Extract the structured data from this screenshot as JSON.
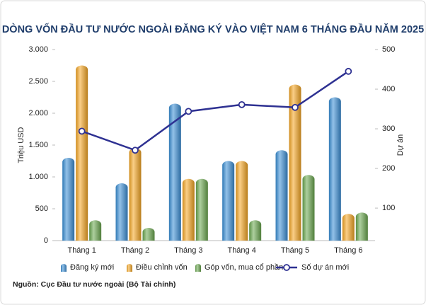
{
  "chart_data": {
    "type": "bar-line",
    "title": "DÒNG VỐN ĐẦU TƯ NƯỚC NGOÀI ĐĂNG KÝ VÀO VIỆT NAM 6 THÁNG ĐẦU NĂM 2025",
    "y_label": "Triệu USD",
    "y2_label": "Dự án",
    "source": "Nguồn: Cục Đầu tư nước ngoài (Bộ Tài chính)",
    "categories": [
      "Tháng 1",
      "Tháng 2",
      "Tháng 3",
      "Tháng 4",
      "Tháng 5",
      "Tháng 6"
    ],
    "series": [
      {
        "name": "Đăng ký mới",
        "color": "#3a8fd6",
        "values": [
          1300,
          900,
          2150,
          1250,
          1420,
          2250
        ]
      },
      {
        "name": "Điều chỉnh vốn",
        "color": "#f5a623",
        "values": [
          2750,
          1450,
          970,
          1250,
          2450,
          420
        ]
      },
      {
        "name": "Góp vốn, mua cổ phần",
        "color": "#6aa84f",
        "values": [
          320,
          200,
          970,
          320,
          1030,
          440
        ]
      },
      {
        "name": "Số dự án mới",
        "color": "#2e3192",
        "axis": "y2",
        "type": "line",
        "values": [
          294,
          246,
          344,
          361,
          354,
          445
        ]
      }
    ],
    "ylim": [
      0,
      3000
    ],
    "yticks": [
      0,
      500,
      {
        "value": 1000,
        "label": "1.000"
      },
      {
        "value": 1500,
        "label": "1.500"
      },
      {
        "value": 2000,
        "label": "2.000"
      },
      {
        "value": 2500,
        "label": "2.500"
      },
      {
        "value": 3000,
        "label": "3.000"
      }
    ],
    "y2lim": [
      18,
      500
    ],
    "y2ticks": [
      100,
      200,
      300,
      400,
      500
    ],
    "grid": false,
    "legend": "bottom"
  }
}
